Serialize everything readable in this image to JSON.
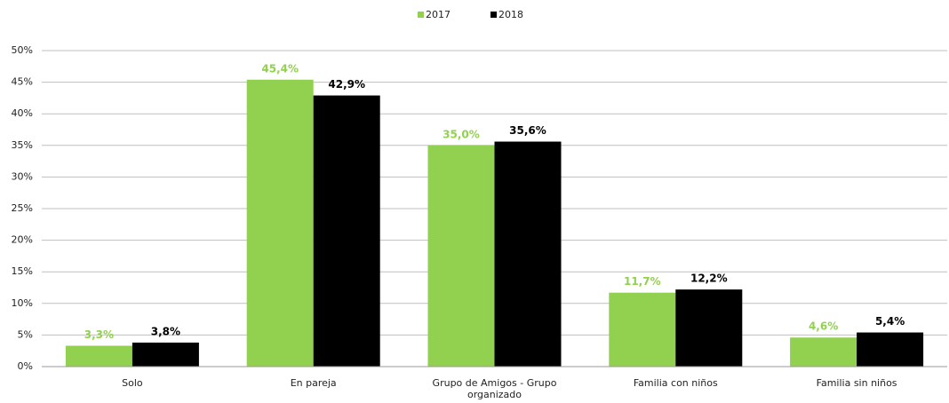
{
  "chart_data": {
    "type": "bar",
    "categories": [
      "Solo",
      "En pareja",
      "Grupo de Amigos - Grupo organizado",
      "Familia con niños",
      "Familia sin niños"
    ],
    "series": [
      {
        "name": "2017",
        "color": "#92d050",
        "values": [
          3.3,
          45.4,
          35.0,
          11.7,
          4.6
        ],
        "value_labels": [
          "3,3%",
          "45,4%",
          "35,0%",
          "11,7%",
          "4,6%"
        ]
      },
      {
        "name": "2018",
        "color": "#000000",
        "values": [
          3.8,
          42.9,
          35.6,
          12.2,
          5.4
        ],
        "value_labels": [
          "3,8%",
          "42,9%",
          "35,6%",
          "12,2%",
          "5,4%"
        ]
      }
    ],
    "ylim": [
      0,
      50
    ],
    "yticks": [
      {
        "value": 0,
        "label": "0%"
      },
      {
        "value": 5,
        "label": "5%"
      },
      {
        "value": 10,
        "label": "10%"
      },
      {
        "value": 15,
        "label": "15%"
      },
      {
        "value": 20,
        "label": "20%"
      },
      {
        "value": 25,
        "label": "25%"
      },
      {
        "value": 30,
        "label": "30%"
      },
      {
        "value": 35,
        "label": "35%"
      },
      {
        "value": 40,
        "label": "40%"
      },
      {
        "value": 45,
        "label": "45%"
      },
      {
        "value": 50,
        "label": "50%"
      }
    ],
    "grid": true,
    "legend": "top"
  }
}
